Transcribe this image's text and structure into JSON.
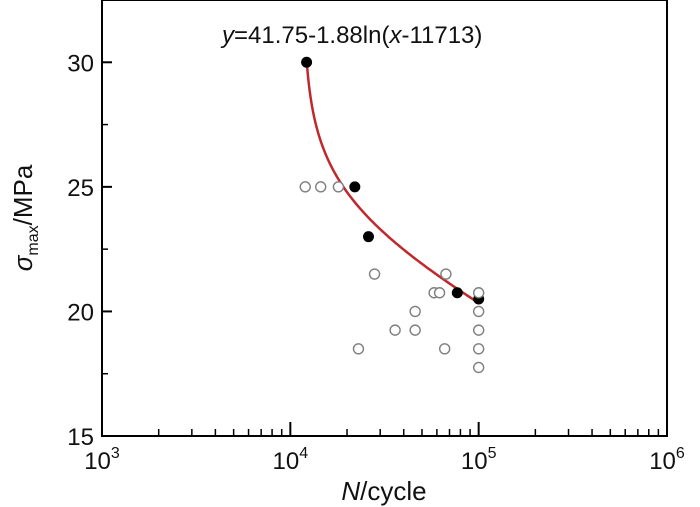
{
  "chart_data": {
    "type": "scatter",
    "x_scale": "log",
    "xlim": [
      1000,
      1000000
    ],
    "ylim": [
      15,
      32.5
    ],
    "grid": false,
    "x_ticks": [
      {
        "value": 1000,
        "base": "10",
        "exp": "3"
      },
      {
        "value": 10000,
        "base": "10",
        "exp": "4"
      },
      {
        "value": 100000,
        "base": "10",
        "exp": "5"
      },
      {
        "value": 1000000,
        "base": "10",
        "exp": "6"
      }
    ],
    "y_ticks": [
      {
        "value": 15,
        "label": "15"
      },
      {
        "value": 20,
        "label": "20"
      },
      {
        "value": 25,
        "label": "25"
      },
      {
        "value": 30,
        "label": "30"
      }
    ],
    "xlabel": {
      "main": "N",
      "rest": "/cycle"
    },
    "ylabel": {
      "symbol": "σ",
      "sub": "max",
      "rest": "/MPa"
    },
    "annotation": {
      "y": "y",
      "eq1": "=41.75-1.88ln(",
      "x": "x",
      "eq2": "-11713)"
    },
    "series": [
      {
        "marker": "filled-circle",
        "color": "#000000",
        "points": [
          {
            "x": 12200,
            "y": 30.0
          },
          {
            "x": 22000,
            "y": 25.0
          },
          {
            "x": 26000,
            "y": 23.0
          },
          {
            "x": 77000,
            "y": 20.75
          },
          {
            "x": 100000,
            "y": 20.5
          }
        ]
      },
      {
        "marker": "open-circle",
        "color": "#7f7f7f",
        "points": [
          {
            "x": 12000,
            "y": 25.0
          },
          {
            "x": 14500,
            "y": 25.0
          },
          {
            "x": 18000,
            "y": 25.0
          },
          {
            "x": 28000,
            "y": 21.5
          },
          {
            "x": 23000,
            "y": 18.5
          },
          {
            "x": 36000,
            "y": 19.25
          },
          {
            "x": 46000,
            "y": 19.25
          },
          {
            "x": 46000,
            "y": 20.0
          },
          {
            "x": 58000,
            "y": 20.75
          },
          {
            "x": 62000,
            "y": 20.75
          },
          {
            "x": 67000,
            "y": 21.5
          },
          {
            "x": 66000,
            "y": 18.5
          },
          {
            "x": 100000,
            "y": 20.75
          },
          {
            "x": 100000,
            "y": 20.0
          },
          {
            "x": 100000,
            "y": 19.25
          },
          {
            "x": 100000,
            "y": 18.5
          },
          {
            "x": 100000,
            "y": 17.75
          }
        ]
      }
    ],
    "fit_curve": {
      "color": "#c0282d",
      "a": 41.75,
      "b": 1.88,
      "c": 11713,
      "x_from": 12200,
      "x_to": 100000
    }
  }
}
